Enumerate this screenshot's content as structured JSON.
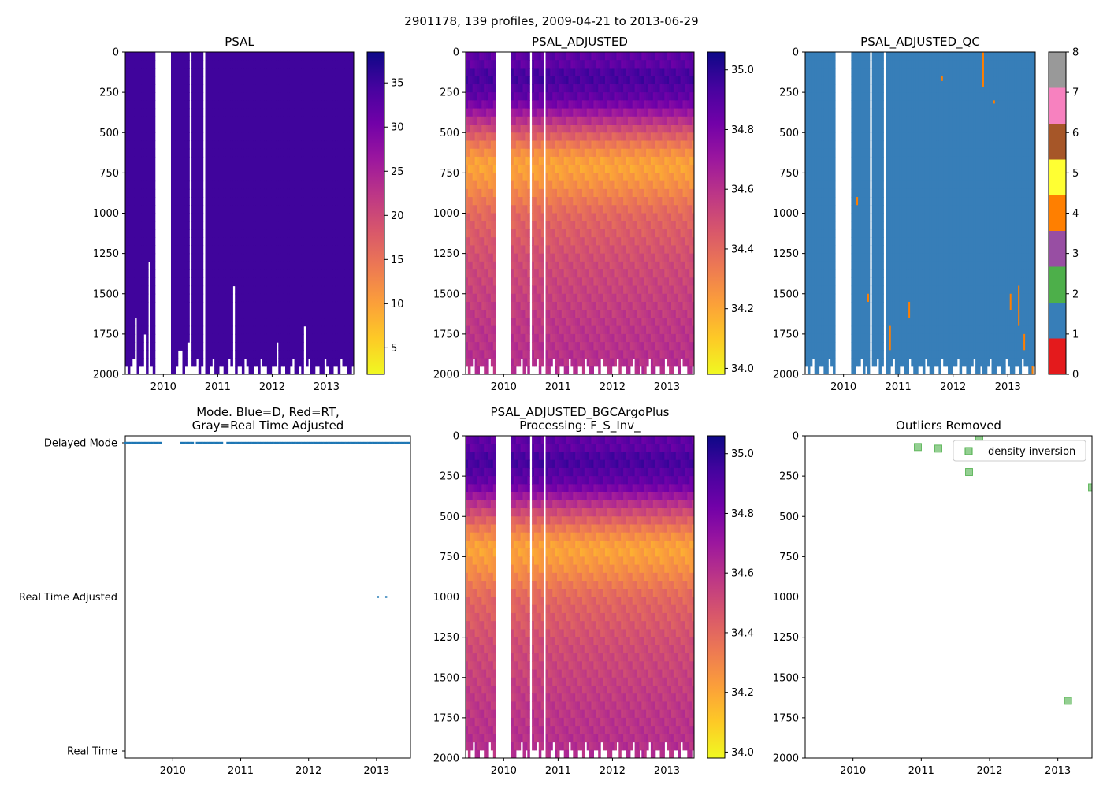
{
  "figure": {
    "suptitle": "2901178, 139 profiles, 2009-04-21 to 2013-06-29"
  },
  "colors": {
    "plasma": [
      "#f0f921",
      "#fdca26",
      "#fb9f3a",
      "#ed7953",
      "#d8576b",
      "#bd3786",
      "#9c179e",
      "#7201a8",
      "#46039f",
      "#0d0887"
    ],
    "qc": [
      "#e41a1c",
      "#377eb8",
      "#4daf4a",
      "#984ea3",
      "#ff7f00",
      "#ffff33",
      "#a65628",
      "#f781bf",
      "#999999"
    ],
    "mode_marker": "#1f77b4",
    "outlier_marker": "#4daf4a"
  },
  "chart_data": [
    {
      "id": "psal",
      "type": "heatmap",
      "title": "PSAL",
      "xlabel": "",
      "ylabel": "",
      "xlim": [
        2009.3,
        2013.5
      ],
      "ylim": [
        2000,
        0
      ],
      "xticks": [
        "2010",
        "2011",
        "2012",
        "2013"
      ],
      "yticks": [
        "0",
        "250",
        "500",
        "750",
        "1000",
        "1250",
        "1500",
        "1750",
        "2000"
      ],
      "colorbar": {
        "min": 2,
        "max": 38.5,
        "ticks": [
          "5",
          "10",
          "15",
          "20",
          "25",
          "30",
          "35"
        ],
        "tick_values": [
          5,
          10,
          15,
          20,
          25,
          30,
          35
        ]
      },
      "fill_value": 34.9,
      "gaps": [
        [
          2009.85,
          2010.12
        ],
        [
          2010.48,
          2010.52
        ],
        [
          2010.72,
          2010.78
        ]
      ],
      "profile_bottoms": [
        [
          2009.4,
          1950
        ],
        [
          2009.5,
          1650
        ],
        [
          2009.65,
          1750
        ],
        [
          2009.75,
          1300
        ],
        [
          2010.3,
          1850
        ],
        [
          2010.45,
          1800
        ],
        [
          2011.3,
          1450
        ],
        [
          2012.1,
          1800
        ],
        [
          2012.6,
          1700
        ]
      ]
    },
    {
      "id": "psal_adj",
      "type": "heatmap",
      "title": "PSAL_ADJUSTED",
      "xlabel": "",
      "ylabel": "",
      "xlim": [
        2009.3,
        2013.5
      ],
      "ylim": [
        2000,
        0
      ],
      "xticks": [
        "2010",
        "2011",
        "2012",
        "2013"
      ],
      "yticks": [
        "0",
        "250",
        "500",
        "750",
        "1000",
        "1250",
        "1500",
        "1750",
        "2000"
      ],
      "colorbar": {
        "min": 33.98,
        "max": 35.06,
        "ticks": [
          "34.0",
          "34.2",
          "34.4",
          "34.6",
          "34.8",
          "35.0"
        ],
        "tick_values": [
          34.0,
          34.2,
          34.4,
          34.6,
          34.8,
          35.0
        ]
      },
      "depth_profile": [
        [
          0,
          34.9
        ],
        [
          50,
          34.85
        ],
        [
          150,
          34.95
        ],
        [
          300,
          34.85
        ],
        [
          450,
          34.55
        ],
        [
          600,
          34.3
        ],
        [
          700,
          34.2
        ],
        [
          800,
          34.25
        ],
        [
          1000,
          34.4
        ],
        [
          1300,
          34.5
        ],
        [
          1700,
          34.58
        ],
        [
          2000,
          34.62
        ]
      ],
      "gaps": [
        [
          2009.85,
          2010.12
        ],
        [
          2010.48,
          2010.52
        ],
        [
          2010.72,
          2010.78
        ]
      ]
    },
    {
      "id": "psal_adj_qc",
      "type": "heatmap",
      "title": "PSAL_ADJUSTED_QC",
      "xlabel": "",
      "ylabel": "",
      "xlim": [
        2009.3,
        2013.5
      ],
      "ylim": [
        2000,
        0
      ],
      "xticks": [
        "2010",
        "2011",
        "2012",
        "2013"
      ],
      "yticks": [
        "0",
        "250",
        "500",
        "750",
        "1000",
        "1250",
        "1500",
        "1750",
        "2000"
      ],
      "colorbar": {
        "min": 0,
        "max": 8,
        "ticks": [
          "0",
          "1",
          "2",
          "3",
          "4",
          "5",
          "6",
          "7",
          "8"
        ],
        "tick_values": [
          0,
          1,
          2,
          3,
          4,
          5,
          6,
          7,
          8
        ]
      },
      "dominant_flag": 1,
      "flag4_marks": [
        [
          2010.25,
          900,
          950
        ],
        [
          2010.45,
          1500,
          1550
        ],
        [
          2010.85,
          1700,
          1850
        ],
        [
          2011.2,
          1550,
          1650
        ],
        [
          2011.8,
          150,
          180
        ],
        [
          2012.55,
          0,
          220
        ],
        [
          2012.75,
          300,
          320
        ],
        [
          2013.05,
          1500,
          1600
        ],
        [
          2013.2,
          1450,
          1700
        ],
        [
          2013.3,
          1750,
          1850
        ],
        [
          2013.45,
          1950,
          2000
        ]
      ],
      "gaps": [
        [
          2009.85,
          2010.12
        ],
        [
          2010.48,
          2010.52
        ],
        [
          2010.72,
          2010.78
        ]
      ]
    },
    {
      "id": "mode",
      "type": "scatter",
      "title": "Mode. Blue=D, Red=RT,\nGray=Real Time Adjusted",
      "xlabel": "",
      "ylabel": "",
      "xlim": [
        2009.3,
        2013.5
      ],
      "xticks": [
        "2010",
        "2011",
        "2012",
        "2013"
      ],
      "yticks": [
        "Real Time",
        "Real Time Adjusted",
        "Delayed Mode"
      ],
      "ytick_values": [
        0,
        1,
        2
      ],
      "delayed_mode_dates": [
        2009.3,
        2009.85,
        2010.12,
        2010.3,
        2010.35,
        2010.75,
        2010.8,
        2013.5
      ],
      "real_time_adjusted_dates": [
        2013.02,
        2013.14
      ]
    },
    {
      "id": "psal_bgc",
      "type": "heatmap",
      "title": "PSAL_ADJUSTED_BGCArgoPlus\nProcessing: F_S_Inv_",
      "xlabel": "",
      "ylabel": "",
      "xlim": [
        2009.3,
        2013.5
      ],
      "ylim": [
        2000,
        0
      ],
      "xticks": [
        "2010",
        "2011",
        "2012",
        "2013"
      ],
      "yticks": [
        "0",
        "250",
        "500",
        "750",
        "1000",
        "1250",
        "1500",
        "1750",
        "2000"
      ],
      "colorbar": {
        "min": 33.98,
        "max": 35.06,
        "ticks": [
          "34.0",
          "34.2",
          "34.4",
          "34.6",
          "34.8",
          "35.0"
        ],
        "tick_values": [
          34.0,
          34.2,
          34.4,
          34.6,
          34.8,
          35.0
        ]
      },
      "gaps": [
        [
          2009.85,
          2010.12
        ],
        [
          2010.48,
          2010.52
        ],
        [
          2010.72,
          2010.78
        ]
      ]
    },
    {
      "id": "outliers",
      "type": "scatter",
      "title": "Outliers Removed",
      "xlabel": "",
      "ylabel": "",
      "xlim": [
        2009.3,
        2013.5
      ],
      "ylim": [
        2000,
        0
      ],
      "xticks": [
        "2010",
        "2011",
        "2012",
        "2013"
      ],
      "yticks": [
        "0",
        "250",
        "500",
        "750",
        "1000",
        "1250",
        "1500",
        "1750",
        "2000"
      ],
      "legend": [
        "density inversion"
      ],
      "legend_position": "top-right",
      "points": [
        [
          2010.95,
          70
        ],
        [
          2011.25,
          80
        ],
        [
          2011.7,
          225
        ],
        [
          2011.85,
          10
        ],
        [
          2013.15,
          1645
        ],
        [
          2013.5,
          320
        ]
      ]
    }
  ]
}
